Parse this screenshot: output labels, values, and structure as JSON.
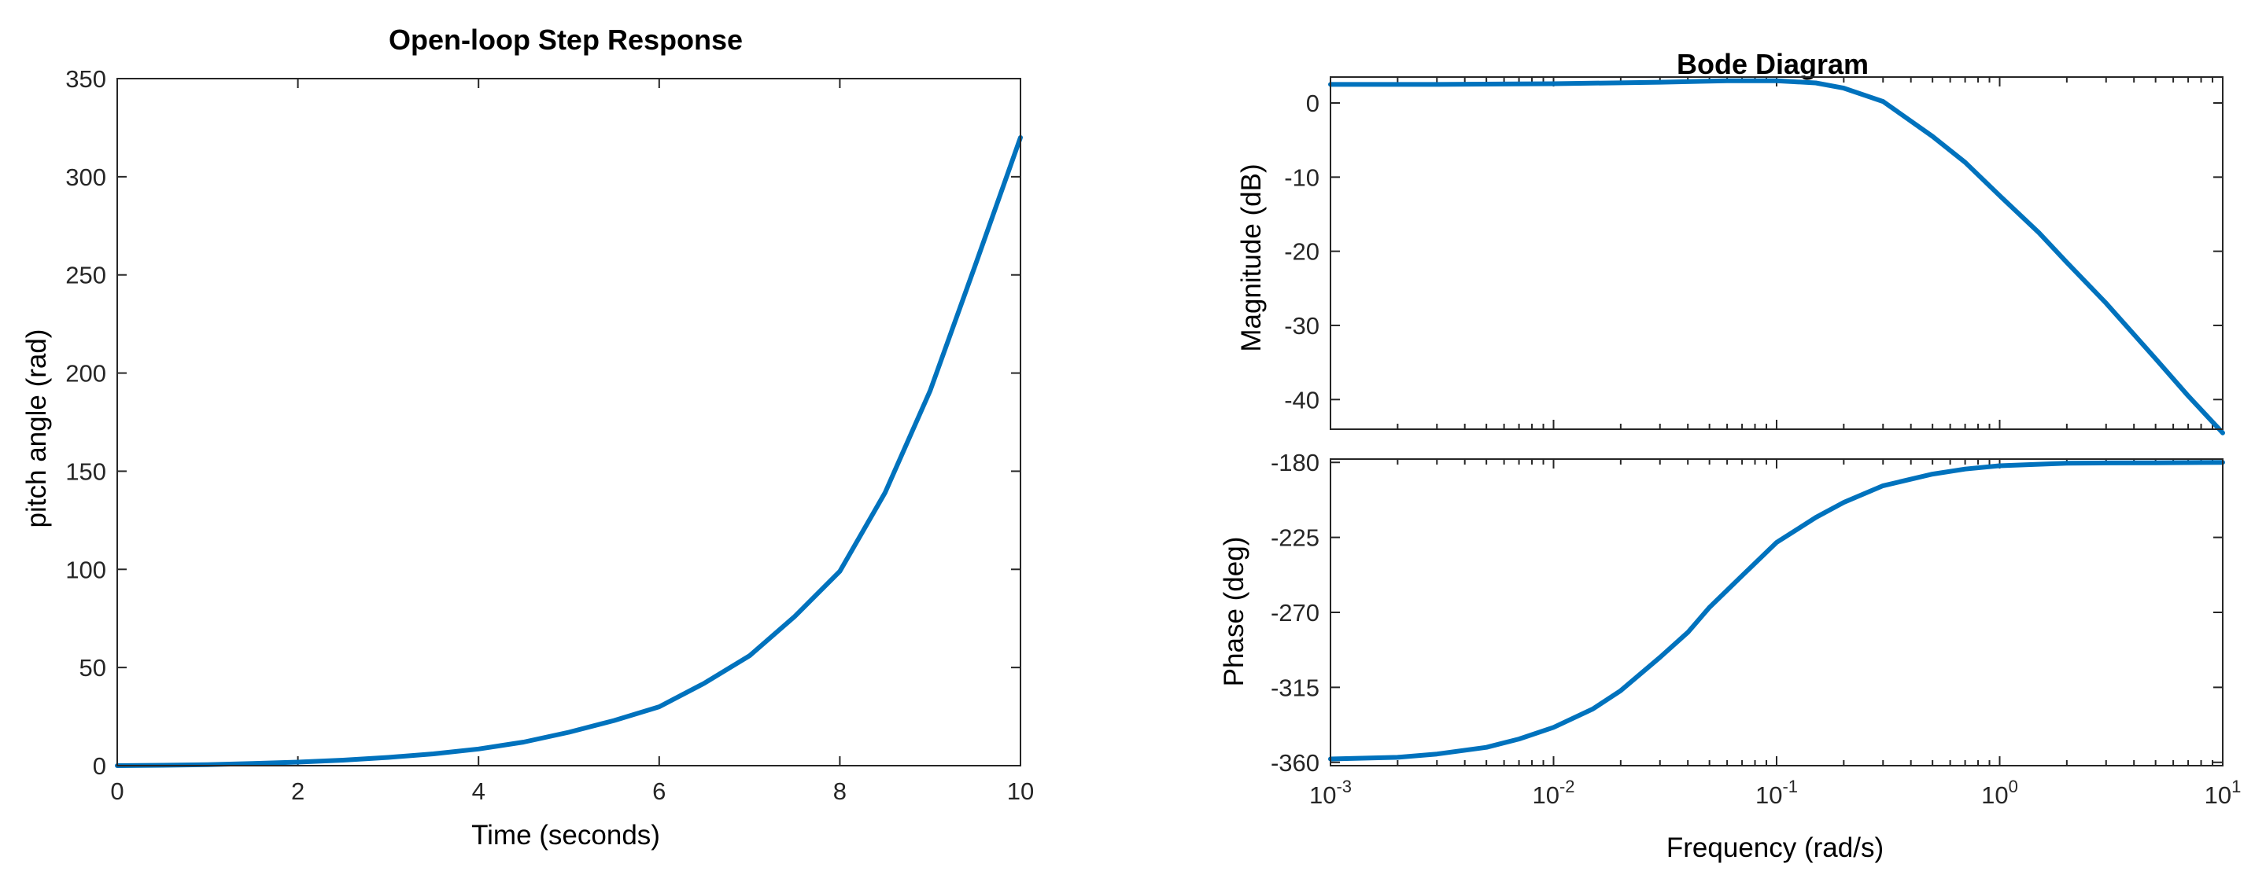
{
  "chart_data": [
    {
      "type": "line",
      "title": "Open-loop Step Response",
      "xlabel": "Time (seconds)",
      "ylabel": "pitch angle (rad)",
      "xlim": [
        0,
        10
      ],
      "ylim": [
        0,
        350
      ],
      "x_scale": "linear",
      "x_ticks": [
        0,
        2,
        4,
        6,
        8,
        10
      ],
      "x_tick_labels": [
        "0",
        "2",
        "4",
        "6",
        "8",
        "10"
      ],
      "y_ticks": [
        0,
        50,
        100,
        150,
        200,
        250,
        300,
        350
      ],
      "y_tick_labels": [
        "0",
        "50",
        "100",
        "150",
        "200",
        "250",
        "300",
        "350"
      ],
      "grid": false,
      "series": [
        {
          "color": "#0072BD",
          "x": [
            0,
            0.5,
            1,
            1.5,
            2,
            2.5,
            3,
            3.5,
            4,
            4.5,
            5,
            5.5,
            6,
            6.5,
            7,
            7.5,
            8,
            8.5,
            9,
            9.5,
            10
          ],
          "y": [
            0,
            0.2,
            0.5,
            1.1,
            1.8,
            2.8,
            4.2,
            6,
            8.5,
            12,
            17,
            23,
            30,
            42,
            56,
            76,
            99,
            139,
            191,
            255,
            320
          ]
        }
      ]
    },
    {
      "type": "line",
      "title": "Bode Diagram",
      "xlabel": "Frequency  (rad/s)",
      "x_scale": "log",
      "xlim": [
        0.001,
        10
      ],
      "x_ticks": [
        0.001,
        0.01,
        0.1,
        1,
        10
      ],
      "x_tick_labels": [
        {
          "base": "10",
          "exp": "-3"
        },
        {
          "base": "10",
          "exp": "-2"
        },
        {
          "base": "10",
          "exp": "-1"
        },
        {
          "base": "10",
          "exp": "0"
        },
        {
          "base": "10",
          "exp": "1"
        }
      ],
      "panels": [
        {
          "ylabel": "Magnitude (dB)",
          "ylim": [
            -44,
            3.5
          ],
          "y_ticks": [
            0,
            -10,
            -20,
            -30,
            -40
          ],
          "y_tick_labels": [
            "0",
            "-10",
            "-20",
            "-30",
            "-40"
          ],
          "series": [
            {
              "color": "#0072BD",
              "x": [
                0.001,
                0.003,
                0.01,
                0.03,
                0.06,
                0.1,
                0.15,
                0.2,
                0.3,
                0.5,
                0.7,
                1,
                1.5,
                2,
                3,
                5,
                7,
                10
              ],
              "y": [
                2.5,
                2.5,
                2.6,
                2.8,
                3.0,
                3.0,
                2.7,
                2.0,
                0.2,
                -4.5,
                -8,
                -12.5,
                -17.5,
                -21.5,
                -27,
                -34.5,
                -39.5,
                -44.5
              ]
            }
          ]
        },
        {
          "ylabel": "Phase (deg)",
          "ylim": [
            -362,
            -178
          ],
          "y_ticks": [
            -180,
            -225,
            -270,
            -315,
            -360
          ],
          "y_tick_labels": [
            "-180",
            "-225",
            "-270",
            "-315",
            "-360"
          ],
          "series": [
            {
              "color": "#0072BD",
              "x": [
                0.001,
                0.002,
                0.003,
                0.005,
                0.007,
                0.01,
                0.015,
                0.02,
                0.03,
                0.04,
                0.05,
                0.07,
                0.1,
                0.15,
                0.2,
                0.3,
                0.5,
                0.7,
                1,
                2,
                3,
                5,
                10
              ],
              "y": [
                -358,
                -357,
                -355,
                -351,
                -346,
                -339,
                -328,
                -317,
                -297,
                -282,
                -267,
                -248,
                -228,
                -213,
                -204,
                -194,
                -187,
                -184,
                -182,
                -180.5,
                -180.3,
                -180.2,
                -180
              ]
            }
          ]
        }
      ]
    }
  ]
}
